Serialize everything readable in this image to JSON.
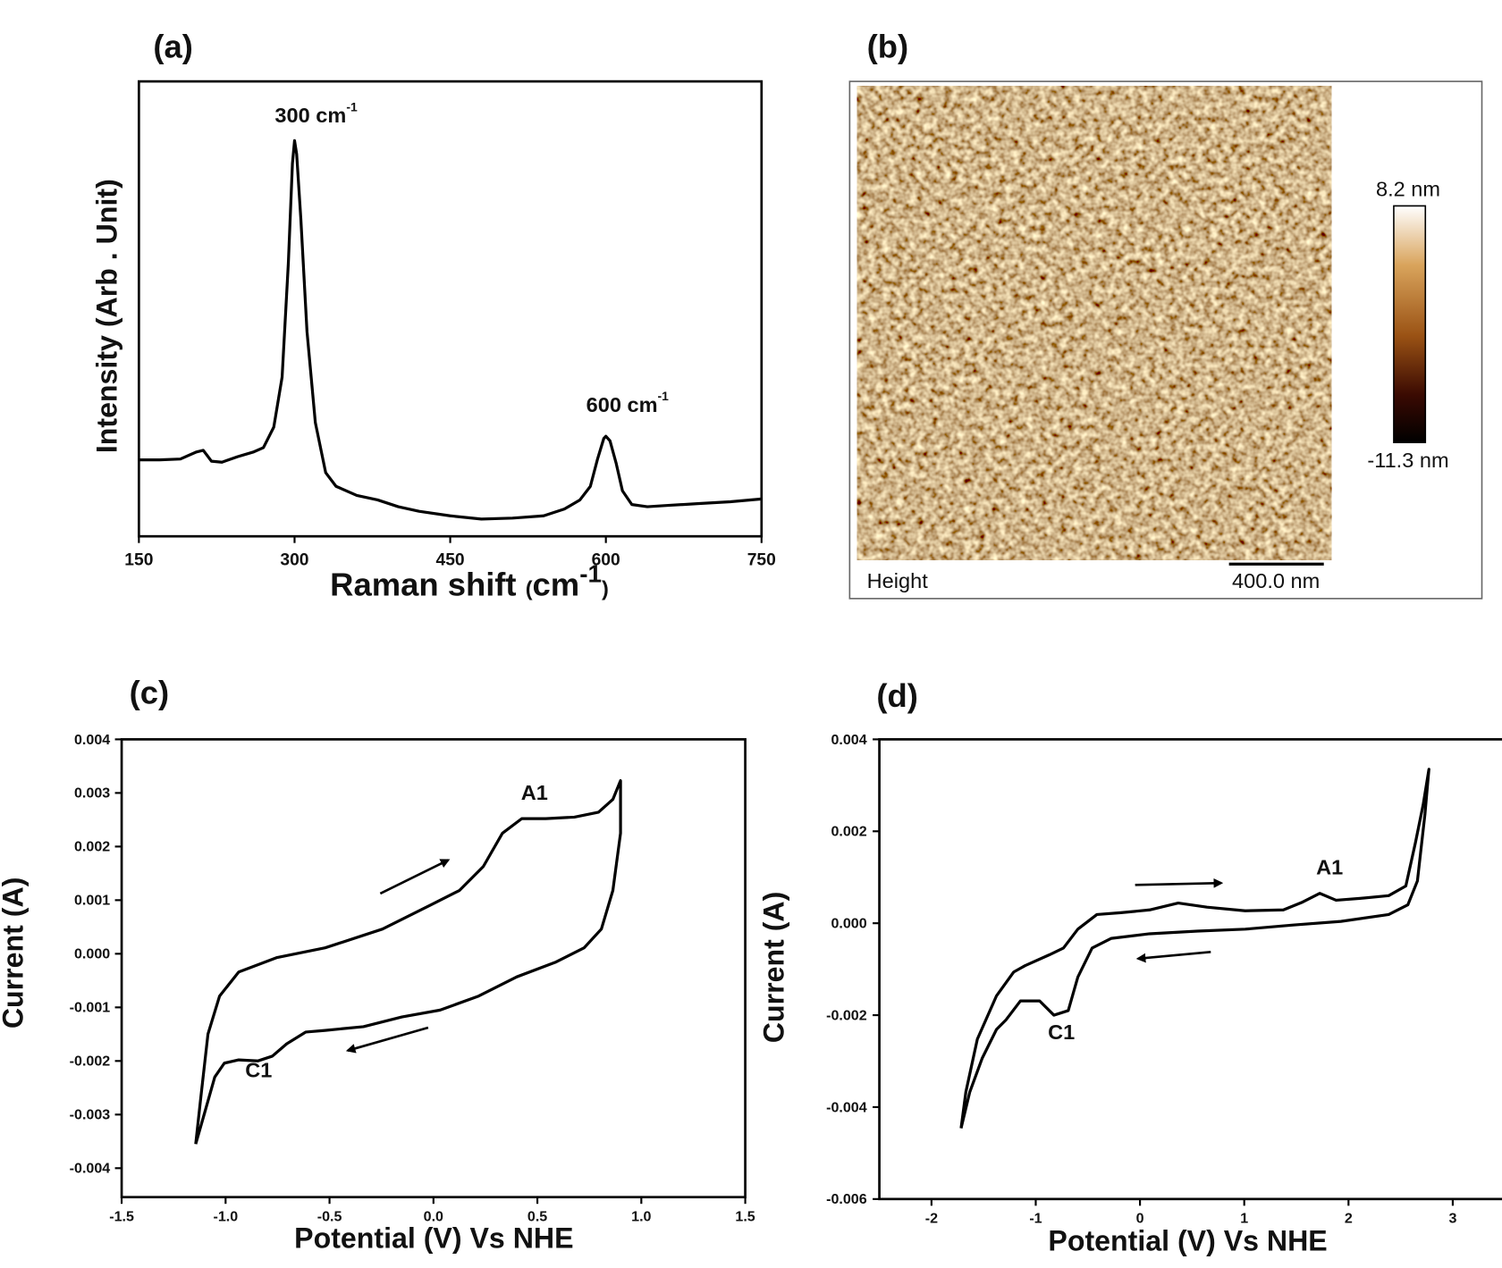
{
  "chart_data": [
    {
      "type": "line",
      "title": "(a)",
      "ylabel": "Intensity (Arb . Unit)",
      "xlabel": [
        "Raman shift ",
        "(",
        "cm",
        "-1",
        ")"
      ],
      "x": [
        150,
        170,
        190,
        205,
        212,
        220,
        230,
        245,
        260,
        270,
        280,
        288,
        294,
        298,
        300,
        302,
        306,
        312,
        320,
        330,
        340,
        360,
        380,
        400,
        420,
        450,
        480,
        510,
        540,
        560,
        575,
        585,
        592,
        598,
        600,
        604,
        610,
        616,
        625,
        640,
        660,
        690,
        720,
        750
      ],
      "values": [
        16.8,
        16.8,
        17,
        18.5,
        18.9,
        16.5,
        16.3,
        17.5,
        18.5,
        19.5,
        24,
        35,
        60,
        82,
        87,
        84,
        70,
        45,
        25,
        14,
        11,
        9,
        8,
        6.5,
        5.5,
        4.5,
        3.8,
        4,
        4.5,
        6,
        8,
        11,
        17,
        21.5,
        22,
        21,
        16,
        10,
        7,
        6.5,
        6.8,
        7.2,
        7.6,
        8.2
      ],
      "color": "#000000",
      "xlim": [
        150,
        750
      ],
      "xticks": [
        150,
        300,
        450,
        600,
        750
      ],
      "ylim": [
        0,
        100
      ],
      "annotations": [
        {
          "text": "300 cm",
          "sup": "-1"
        },
        {
          "text": "600 cm",
          "sup": "-1"
        }
      ]
    },
    {
      "type": "image",
      "title": "(b)",
      "channel": "Height",
      "scale_bar": "400.0 nm",
      "zlim": [
        -11.3,
        8.2
      ],
      "colorbar_ticks": [
        {
          "value": 8.2,
          "label": "8.2 nm"
        },
        {
          "value": -11.3,
          "label": "-11.3 nm"
        }
      ]
    },
    {
      "type": "line",
      "title": "(c)",
      "ylabel": "Current (A)",
      "xlabel": "Potential (V) Vs NHE",
      "x": [
        -1.144,
        -1.121,
        -1.085,
        -1.029,
        -0.937,
        -0.752,
        -0.521,
        -0.245,
        -0.014,
        0.125,
        0.24,
        0.332,
        0.425,
        0.54,
        0.678,
        0.794,
        0.863,
        0.9,
        0.9,
        0.863,
        0.808,
        0.725,
        0.586,
        0.401,
        0.217,
        0.032,
        -0.152,
        -0.337,
        -0.521,
        -0.614,
        -0.706,
        -0.775,
        -0.845,
        -0.937,
        -1.006,
        -1.052,
        -1.098,
        -1.144
      ],
      "values": [
        -0.00355,
        -0.00275,
        -0.0015,
        -0.00079,
        -0.00034,
        -7e-05,
        0.00011,
        0.00046,
        0.00091,
        0.00118,
        0.00163,
        0.00225,
        0.00252,
        0.00252,
        0.00255,
        0.00264,
        0.00288,
        0.00323,
        0.00225,
        0.00118,
        0.00046,
        0.00011,
        -0.00016,
        -0.00043,
        -0.00079,
        -0.00105,
        -0.00118,
        -0.00136,
        -0.00143,
        -0.00146,
        -0.00168,
        -0.00191,
        -0.002,
        -0.00198,
        -0.00204,
        -0.0023,
        -0.00293,
        -0.00355
      ],
      "color": "#000000",
      "xlim": [
        -1.5,
        1.5
      ],
      "xticks": [
        -1.5,
        {
          "value": -1,
          "label": "-1.0"
        },
        -0.5,
        {
          "value": 0,
          "label": "0.0"
        },
        0.5,
        {
          "value": 1,
          "label": "1.0"
        },
        1.5
      ],
      "ylim": [
        -0.00454,
        0.004
      ],
      "yticks": [
        0.004,
        0.003,
        0.002,
        0.001,
        {
          "value": 0,
          "label": "0.000"
        },
        -0.001,
        -0.002,
        -0.003,
        -0.004
      ],
      "annotations": [
        {
          "text": "A1"
        },
        {
          "text": "C1"
        }
      ]
    },
    {
      "type": "line",
      "title": "(d)",
      "ylabel": "Current (A)",
      "xlabel": "Potential (V) Vs NHE",
      "x": [
        -1.716,
        -1.67,
        -1.56,
        -1.376,
        -1.211,
        -1.101,
        -0.872,
        -0.734,
        -0.596,
        -0.413,
        -0.183,
        0.092,
        0.367,
        0.642,
        1.009,
        1.376,
        1.56,
        1.725,
        1.881,
        2.11,
        2.385,
        2.55,
        2.642,
        2.716,
        2.771,
        2.734,
        2.661,
        2.569,
        2.385,
        1.927,
        1.468,
        1.009,
        0.55,
        0.092,
        -0.275,
        -0.459,
        -0.596,
        -0.688,
        -0.826,
        -0.963,
        -1.147,
        -1.284,
        -1.376,
        -1.514,
        -1.633,
        -1.716
      ],
      "values": [
        -0.00446,
        -0.00367,
        -0.00252,
        -0.00158,
        -0.00106,
        -0.00092,
        -0.00069,
        -0.00054,
        -0.00013,
        0.00019,
        0.00023,
        0.00029,
        0.00044,
        0.00035,
        0.00027,
        0.00029,
        0.00046,
        0.00065,
        0.0005,
        0.00054,
        0.0006,
        0.00081,
        0.00175,
        0.00258,
        0.00335,
        0.00238,
        0.00092,
        0.0004,
        0.00019,
        4e-05,
        -4e-05,
        -0.00013,
        -0.00017,
        -0.00023,
        -0.00033,
        -0.00054,
        -0.00117,
        -0.0019,
        -0.002,
        -0.00169,
        -0.00169,
        -0.0021,
        -0.00231,
        -0.00294,
        -0.00367,
        -0.00446
      ],
      "color": "#000000",
      "xlim": [
        -2.5,
        3.5
      ],
      "xticks": [
        -2,
        -1,
        0,
        1,
        2,
        3
      ],
      "ylim": [
        -0.006,
        0.004
      ],
      "yticks": [
        0.004,
        0.002,
        {
          "value": 0,
          "label": "0.000"
        },
        -0.002,
        -0.004,
        -0.006
      ],
      "annotations": [
        {
          "text": "A1"
        },
        {
          "text": "C1"
        }
      ]
    }
  ]
}
